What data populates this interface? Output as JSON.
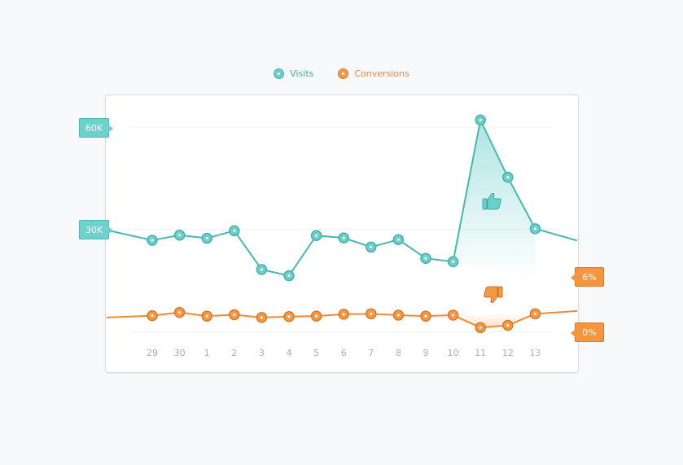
{
  "legend": {
    "visits_label": "Visits",
    "conversions_label": "Conversions"
  },
  "colors": {
    "visits": "#45b8b2",
    "visits_fill": "#6dcfca",
    "conversions": "#f08a34",
    "conversions_fill": "#f59a44",
    "gridline": "#eceff2",
    "tick_text": "#a9adb3"
  },
  "axis_tags": {
    "left_top": "60K",
    "left_mid": "30K",
    "right_top": "6%",
    "right_bottom": "0%"
  },
  "icons": {
    "peak_marker": "thumbs-up-icon",
    "dip_marker": "thumbs-down-icon"
  },
  "chart_data": {
    "type": "line",
    "categories": [
      "29",
      "30",
      "1",
      "2",
      "3",
      "4",
      "5",
      "6",
      "7",
      "8",
      "9",
      "10",
      "11",
      "12",
      "13"
    ],
    "series": [
      {
        "name": "Visits",
        "axis": "left",
        "values": [
          27000,
          28500,
          27600,
          29800,
          18400,
          16600,
          28400,
          27700,
          25000,
          27200,
          21700,
          20700,
          62300,
          45500,
          30400
        ],
        "edge_left": 30000,
        "edge_right": 26900
      },
      {
        "name": "Conversions",
        "axis": "right",
        "values": [
          1.8,
          2.15,
          1.75,
          1.9,
          1.6,
          1.7,
          1.75,
          1.95,
          2.0,
          1.85,
          1.75,
          1.85,
          0.5,
          0.75,
          2.0
        ],
        "edge_left": 1.6,
        "edge_right": 2.3
      }
    ],
    "left_axis": {
      "ticks": [
        30000,
        60000
      ],
      "tick_labels": [
        "30K",
        "60K"
      ],
      "ylim": [
        0,
        60000
      ]
    },
    "right_axis": {
      "ticks": [
        0,
        6
      ],
      "tick_labels": [
        "0%",
        "6%"
      ]
    },
    "highlights": [
      {
        "series": "Visits",
        "from_index": 11,
        "to_index": 14,
        "marker": "thumbs-up-icon"
      },
      {
        "series": "Conversions",
        "from_index": 11,
        "to_index": 14,
        "marker": "thumbs-down-icon"
      }
    ],
    "grid": true,
    "legend_position": "top-center",
    "title": "",
    "xlabel": "",
    "ylabel": ""
  }
}
